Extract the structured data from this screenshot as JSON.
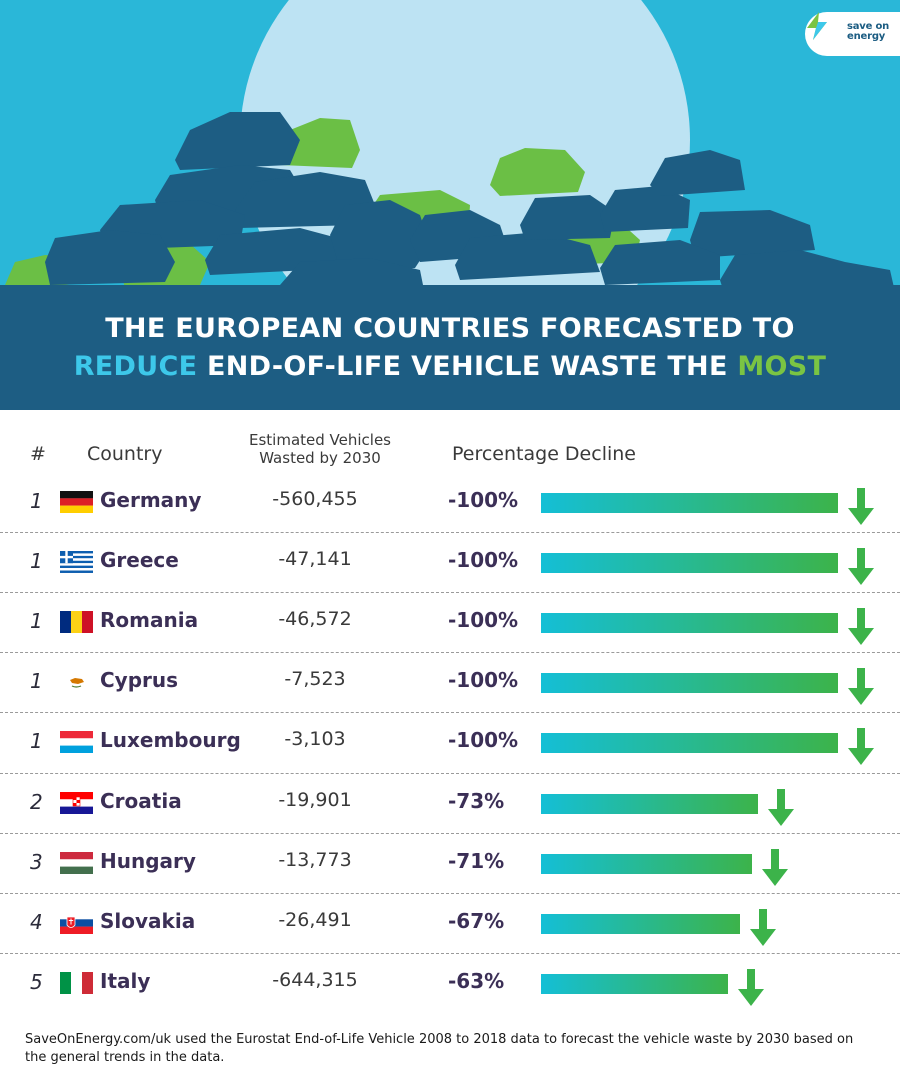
{
  "brand": {
    "line1": "save on",
    "line2": "energy"
  },
  "title": {
    "line1": "THE EUROPEAN COUNTRIES FORECASTED TO",
    "line2_highlight1": "REDUCE",
    "line2_middle": " END-OF-LIFE VEHICLE WASTE THE ",
    "line2_highlight2": "MOST"
  },
  "columns": {
    "rank": "#",
    "country": "Country",
    "estimated_line1": "Estimated Vehicles",
    "estimated_line2": "Wasted by 2030",
    "percentage": "Percentage Decline"
  },
  "colors": {
    "accent_blue": "#3dc8ea",
    "accent_green": "#7ac443",
    "hero_bg": "#2ab7d8",
    "banner": "#1b5c82",
    "bar_start": "#14bfd6",
    "bar_end": "#3cb34a"
  },
  "chart_data": {
    "type": "bar",
    "categories": [
      "Germany",
      "Greece",
      "Romania",
      "Cyprus",
      "Luxembourg",
      "Croatia",
      "Hungary",
      "Slovakia",
      "Italy"
    ],
    "ranks": [
      "1",
      "1",
      "1",
      "1",
      "1",
      "2",
      "3",
      "4",
      "5"
    ],
    "estimated_vehicles": [
      "-560,455",
      "-47,141",
      "-46,572",
      "-7,523",
      "-3,103",
      "-19,901",
      "-13,773",
      "-26,491",
      "-644,315"
    ],
    "percent_labels": [
      "-100%",
      "-100%",
      "-100%",
      "-100%",
      "-100%",
      "-73%",
      "-71%",
      "-67%",
      "-63%"
    ],
    "values": [
      -100,
      -100,
      -100,
      -100,
      -100,
      -73,
      -71,
      -67,
      -63
    ],
    "flag_icons": [
      "flag-germany-icon",
      "flag-greece-icon",
      "flag-romania-icon",
      "flag-cyprus-icon",
      "flag-luxembourg-icon",
      "flag-croatia-icon",
      "flag-hungary-icon",
      "flag-slovakia-icon",
      "flag-italy-icon"
    ],
    "xlim": [
      0,
      100
    ]
  },
  "footer": "SaveOnEnergy.com/uk used the Eurostat End-of-Life Vehicle 2008 to 2018 data to forecast the vehicle waste by 2030 based on the general trends in the data."
}
